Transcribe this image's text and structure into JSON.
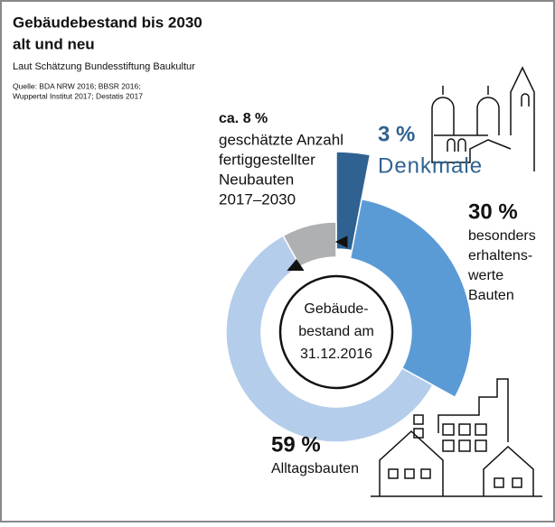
{
  "chart_data": {
    "type": "donut",
    "title": [
      "Gebäudebestand bis 2030",
      "alt und neu"
    ],
    "subtitle": "Laut Schätzung Bundesstiftung Baukultur",
    "source": [
      "Quelle: BDA NRW 2016; BBSR 2016;",
      "Wuppertal Institut 2017; Destatis 2017"
    ],
    "center_label": [
      "Gebäude-",
      "bestand am",
      "31.12.2016"
    ],
    "categories": [
      [
        "Denkmale"
      ],
      [
        "besonders",
        "erhaltens-",
        "werte",
        "Bauten"
      ],
      [
        "Alltagsbauten"
      ],
      [
        "geschätzte Anzahl",
        "fertiggestellter",
        "Neubauten",
        "2017–2030"
      ]
    ],
    "values": [
      3,
      30,
      59,
      8
    ],
    "value_labels": [
      "3 %",
      "30 %",
      "59 %",
      "ca. 8 %"
    ],
    "colors": [
      "#2f6291",
      "#5b9bd5",
      "#b4cdea",
      "#aeb0b2"
    ]
  }
}
